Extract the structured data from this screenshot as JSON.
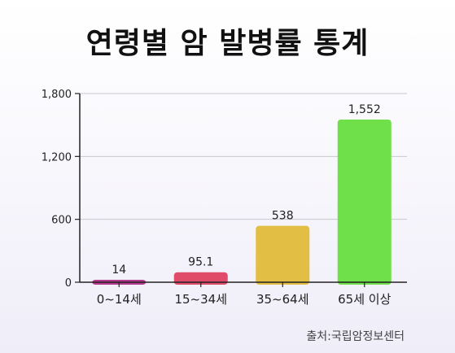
{
  "title": "연령별 암 발병률 통계",
  "source": "출처:국립암정보센터",
  "chart_data": {
    "type": "bar",
    "title": "연령별 암 발병률 통계",
    "categories": [
      "0~14세",
      "15~34세",
      "35~64세",
      "65세 이상"
    ],
    "values": [
      14,
      95.1,
      538,
      1552
    ],
    "value_labels": [
      "14",
      "95.1",
      "538",
      "1,552"
    ],
    "colors": [
      "#b4388c",
      "#e04b6a",
      "#e3be45",
      "#6fdf4a"
    ],
    "ylim": [
      0,
      1800
    ],
    "yticks": [
      0,
      600,
      1200,
      1800
    ],
    "ytick_labels": [
      "0",
      "600",
      "1,200",
      "1,800"
    ],
    "grid": true
  }
}
